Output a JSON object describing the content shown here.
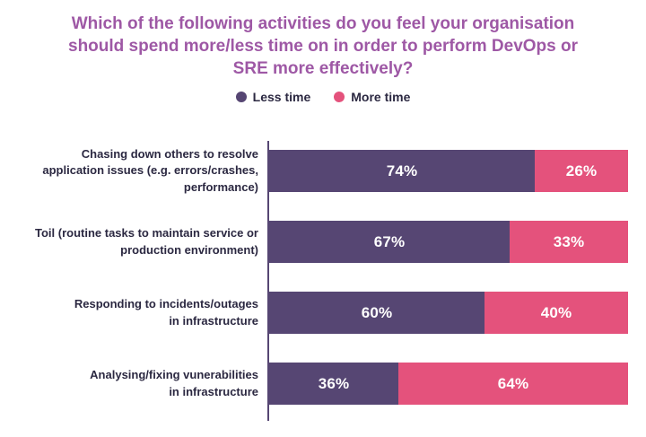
{
  "title": "Which of the following activities do you feel your organisation should spend more/less time on in order to perform DevOps or SRE more effectively?",
  "legend": [
    {
      "label": "Less time",
      "color": "#564673"
    },
    {
      "label": "More time",
      "color": "#E4527C"
    }
  ],
  "chart_data": {
    "type": "bar",
    "stacked": true,
    "orientation": "horizontal",
    "title": "Which of the following activities do you feel your organisation should spend more/less time on in order to perform DevOps or SRE more effectively?",
    "categories": [
      "Chasing down others to resolve\napplication issues (e.g. errors/crashes,\nperformance)",
      "Toil (routine tasks to maintain service or\nproduction environment)",
      "Responding to incidents/outages\nin infrastructure",
      "Analysing/fixing vunerabilities\nin infrastructure"
    ],
    "series": [
      {
        "name": "Less time",
        "color": "#564673",
        "values": [
          74,
          67,
          60,
          36
        ]
      },
      {
        "name": "More time",
        "color": "#E4527C",
        "values": [
          26,
          33,
          40,
          64
        ]
      }
    ],
    "value_suffix": "%",
    "xlim": [
      0,
      100
    ],
    "xlabel": "",
    "ylabel": "",
    "grid": false,
    "legend_position": "top",
    "data_labels": "inside-white-bold"
  },
  "colors": {
    "background": "#FFFFFF",
    "title_text": "#9E58A5",
    "label_text": "#2B2841",
    "bar_value_text": "#FFFFFF",
    "axis_line": "#564673",
    "less_time": "#564673",
    "more_time": "#E4527C"
  }
}
